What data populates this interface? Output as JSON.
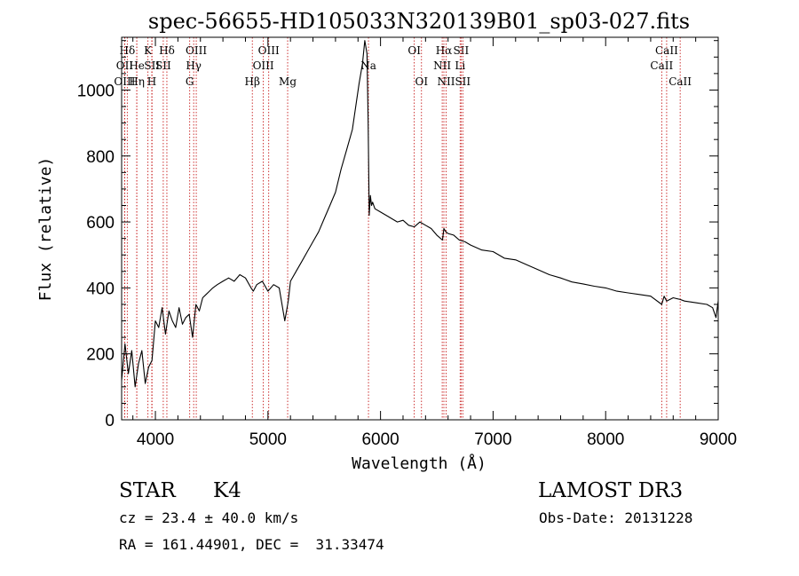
{
  "chart_data": {
    "type": "line",
    "title": "spec-56655-HD105033N320139B01_sp03-027.fits",
    "xlabel": "Wavelength (Å)",
    "ylabel": "Flux (relative)",
    "xlim": [
      3700,
      9000
    ],
    "ylim": [
      0,
      1160
    ],
    "x_ticks": [
      4000,
      5000,
      6000,
      7000,
      8000,
      9000
    ],
    "y_ticks": [
      0,
      200,
      400,
      600,
      800,
      1000
    ],
    "grid": false,
    "series": [
      {
        "x": [
          3700,
          3730,
          3760,
          3790,
          3820,
          3850,
          3880,
          3910,
          3940,
          3970,
          4000,
          4030,
          4060,
          4090,
          4120,
          4150,
          4180,
          4210,
          4240,
          4270,
          4300,
          4330,
          4360,
          4390,
          4420,
          4450,
          4480,
          4510,
          4550,
          4600,
          4650,
          4700,
          4750,
          4800,
          4850,
          4870,
          4900,
          4950,
          5000,
          5050,
          5100,
          5150,
          5180,
          5200,
          5250,
          5300,
          5350,
          5400,
          5450,
          5500,
          5550,
          5600,
          5650,
          5700,
          5750,
          5780,
          5810,
          5840,
          5860,
          5880,
          5890,
          5900,
          5910,
          5920,
          5930,
          5950,
          6000,
          6050,
          6100,
          6150,
          6200,
          6250,
          6300,
          6350,
          6400,
          6450,
          6500,
          6550,
          6563,
          6580,
          6600,
          6650,
          6700,
          6750,
          6800,
          6900,
          7000,
          7100,
          7200,
          7300,
          7400,
          7500,
          7600,
          7700,
          7800,
          7900,
          8000,
          8100,
          8200,
          8300,
          8400,
          8498,
          8520,
          8542,
          8600,
          8662,
          8700,
          8800,
          8900,
          8950,
          8980,
          9000
        ],
        "y": [
          120,
          230,
          140,
          210,
          100,
          170,
          210,
          110,
          160,
          180,
          300,
          280,
          340,
          260,
          330,
          300,
          280,
          340,
          290,
          310,
          320,
          250,
          350,
          330,
          370,
          380,
          390,
          400,
          410,
          420,
          430,
          420,
          440,
          430,
          400,
          390,
          410,
          420,
          390,
          410,
          400,
          300,
          360,
          420,
          450,
          480,
          510,
          540,
          570,
          610,
          650,
          690,
          760,
          820,
          880,
          950,
          1020,
          1080,
          1150,
          1110,
          900,
          620,
          680,
          650,
          660,
          640,
          630,
          620,
          610,
          600,
          605,
          590,
          585,
          600,
          590,
          580,
          560,
          545,
          580,
          570,
          565,
          560,
          545,
          540,
          530,
          515,
          510,
          490,
          485,
          470,
          455,
          440,
          430,
          418,
          412,
          405,
          400,
          390,
          385,
          380,
          375,
          350,
          375,
          360,
          370,
          365,
          360,
          355,
          350,
          340,
          310,
          360
        ]
      }
    ],
    "lines": [
      {
        "name": "Hδ",
        "x": 3750,
        "row": 1
      },
      {
        "name": "OII",
        "x": 3727,
        "row": 2
      },
      {
        "name": "OIII",
        "x": 3727,
        "row": 3
      },
      {
        "name": "He",
        "x": 3835,
        "row": 2
      },
      {
        "name": "Hη",
        "x": 3835,
        "row": 3
      },
      {
        "name": "K",
        "x": 3934,
        "row": 1
      },
      {
        "name": "SII",
        "x": 3970,
        "row": 2
      },
      {
        "name": "H",
        "x": 3968,
        "row": 3
      },
      {
        "name": "Hδ",
        "x": 4102,
        "row": 1
      },
      {
        "name": "SII",
        "x": 4070,
        "row": 2
      },
      {
        "name": "OIII",
        "x": 4363,
        "row": 1
      },
      {
        "name": "Hγ",
        "x": 4340,
        "row": 2
      },
      {
        "name": "G",
        "x": 4305,
        "row": 3
      },
      {
        "name": "Hβ",
        "x": 4861,
        "row": 3
      },
      {
        "name": "OIII",
        "x": 5007,
        "row": 1
      },
      {
        "name": "OIII",
        "x": 4959,
        "row": 2
      },
      {
        "name": "Mg",
        "x": 5175,
        "row": 3
      },
      {
        "name": "Na",
        "x": 5893,
        "row": 2
      },
      {
        "name": "OI",
        "x": 6300,
        "row": 1
      },
      {
        "name": "OI",
        "x": 6364,
        "row": 3
      },
      {
        "name": "Hα",
        "x": 6563,
        "row": 1
      },
      {
        "name": "SII",
        "x": 6716,
        "row": 1
      },
      {
        "name": "NII",
        "x": 6548,
        "row": 2
      },
      {
        "name": "Li",
        "x": 6707,
        "row": 2
      },
      {
        "name": "NII",
        "x": 6583,
        "row": 3
      },
      {
        "name": "SII",
        "x": 6731,
        "row": 3
      },
      {
        "name": "CaII",
        "x": 8542,
        "row": 1
      },
      {
        "name": "CaII",
        "x": 8498,
        "row": 2
      },
      {
        "name": "CaII",
        "x": 8662,
        "row": 3
      }
    ]
  },
  "info": {
    "class_label": "STAR",
    "subclass": "K4",
    "survey": "LAMOST DR3",
    "cz": "cz = 23.4 ± 40.0 km/s",
    "obs_date": "Obs-Date: 20131228",
    "coords": "RA = 161.44901, DEC =  31.33474"
  }
}
